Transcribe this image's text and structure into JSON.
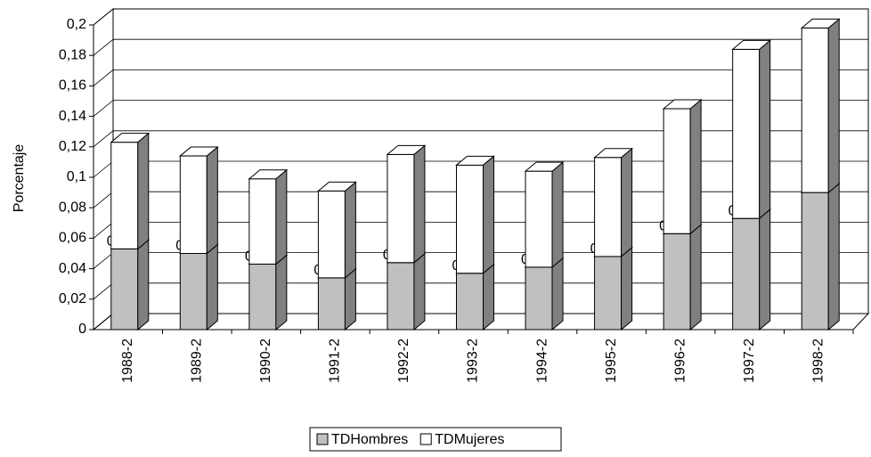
{
  "chart_data": {
    "type": "bar3d-stacked",
    "y_label": "Porcentaje",
    "categories": [
      "1988-2",
      "1989-2",
      "1990-2",
      "1991-2",
      "1992-2",
      "1993-2",
      "1994-2",
      "1995-2",
      "1996-2",
      "1997-2",
      "1998-2"
    ],
    "series": [
      {
        "name": "TDHombres",
        "color": "#c0c0c0",
        "values": [
          0.053,
          0.05,
          0.043,
          0.034,
          0.044,
          0.037,
          0.041,
          0.048,
          0.063,
          0.073,
          0.09
        ],
        "value_labels": [
          "0,053",
          "0,050",
          "0,043",
          "0,034",
          "0,044",
          "0,037",
          "0,041",
          "0,048",
          "0,063",
          "0,073",
          "0,09"
        ]
      },
      {
        "name": "TDMujeres",
        "color": "#ffffff",
        "values": [
          0.07,
          0.064,
          0.056,
          0.057,
          0.071,
          0.071,
          0.063,
          0.065,
          0.082,
          0.111,
          0.108
        ]
      }
    ],
    "ylim": [
      0,
      0.2
    ],
    "yticks": [
      0,
      {
        "value": 0.02,
        "label": "0,02"
      },
      {
        "value": 0.04,
        "label": "0,04"
      },
      {
        "value": 0.06,
        "label": "0,06"
      },
      {
        "value": 0.08,
        "label": "0,08"
      },
      {
        "value": 0.1,
        "label": "0,1"
      },
      {
        "value": 0.12,
        "label": "0,12"
      },
      {
        "value": 0.14,
        "label": "0,14"
      },
      {
        "value": 0.16,
        "label": "0,16"
      },
      {
        "value": 0.18,
        "label": "0,18"
      },
      {
        "value": 0.2,
        "label": "0,2"
      }
    ],
    "grid": true,
    "legend": "bottom"
  }
}
